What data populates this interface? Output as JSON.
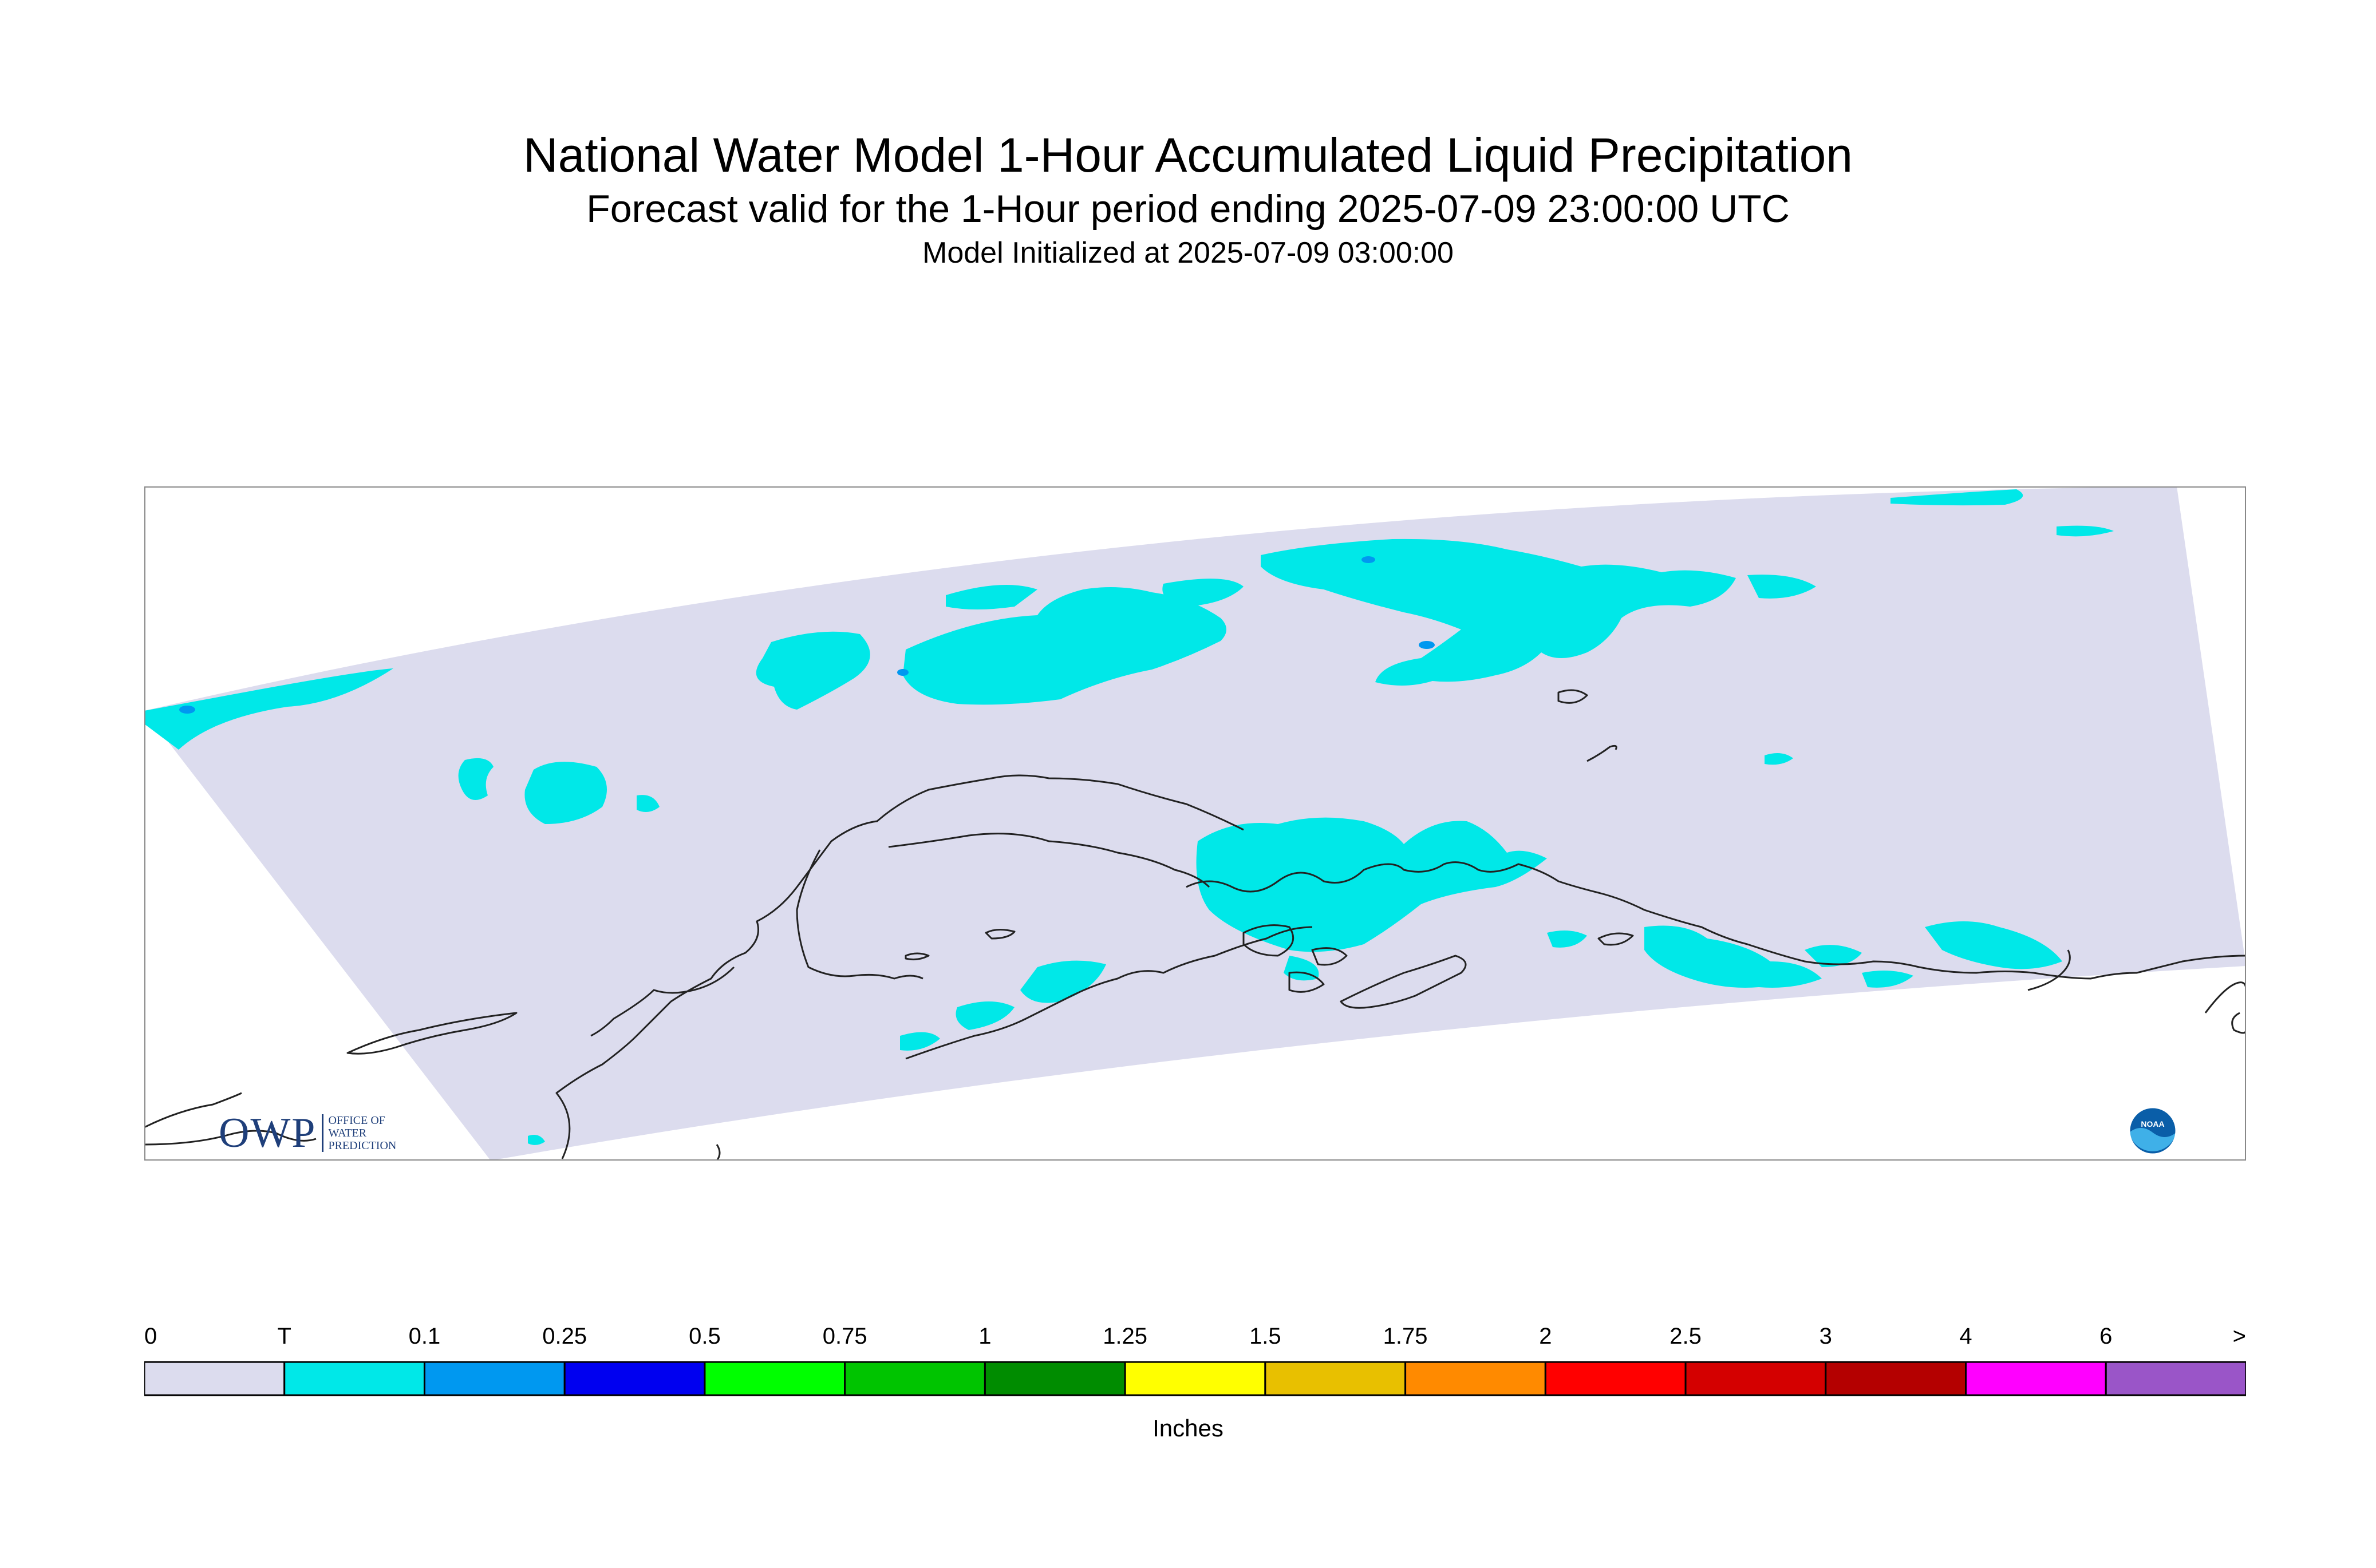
{
  "title": "National Water Model 1-Hour Accumulated Liquid Precipitation",
  "subtitle": "Forecast valid for the 1-Hour period ending 2025-07-09 23:00:00 UTC",
  "init_line": "Model Initialized at 2025-07-09 03:00:00",
  "logos": {
    "owp_mark": "OWP",
    "owp_text": [
      "OFFICE OF",
      "WATER",
      "PREDICTION"
    ],
    "noaa_text": "NOAA"
  },
  "map": {
    "domain_color": "#dcdcee",
    "boundary_color": "#222222",
    "border_color": "#888888"
  },
  "legend": {
    "units": "Inches",
    "labels": [
      "0",
      "T",
      "0.1",
      "0.25",
      "0.5",
      "0.75",
      "1",
      "1.25",
      "1.5",
      "1.75",
      "2",
      "2.5",
      "3",
      "4",
      "6",
      ">"
    ],
    "colors": [
      "#dcdcee",
      "#00e8e8",
      "#0098f0",
      "#0000f0",
      "#00ff00",
      "#00c400",
      "#008c00",
      "#ffff00",
      "#e8c000",
      "#ff8a00",
      "#ff0000",
      "#d40000",
      "#b40000",
      "#ff00ff",
      "#9a55c8"
    ]
  }
}
